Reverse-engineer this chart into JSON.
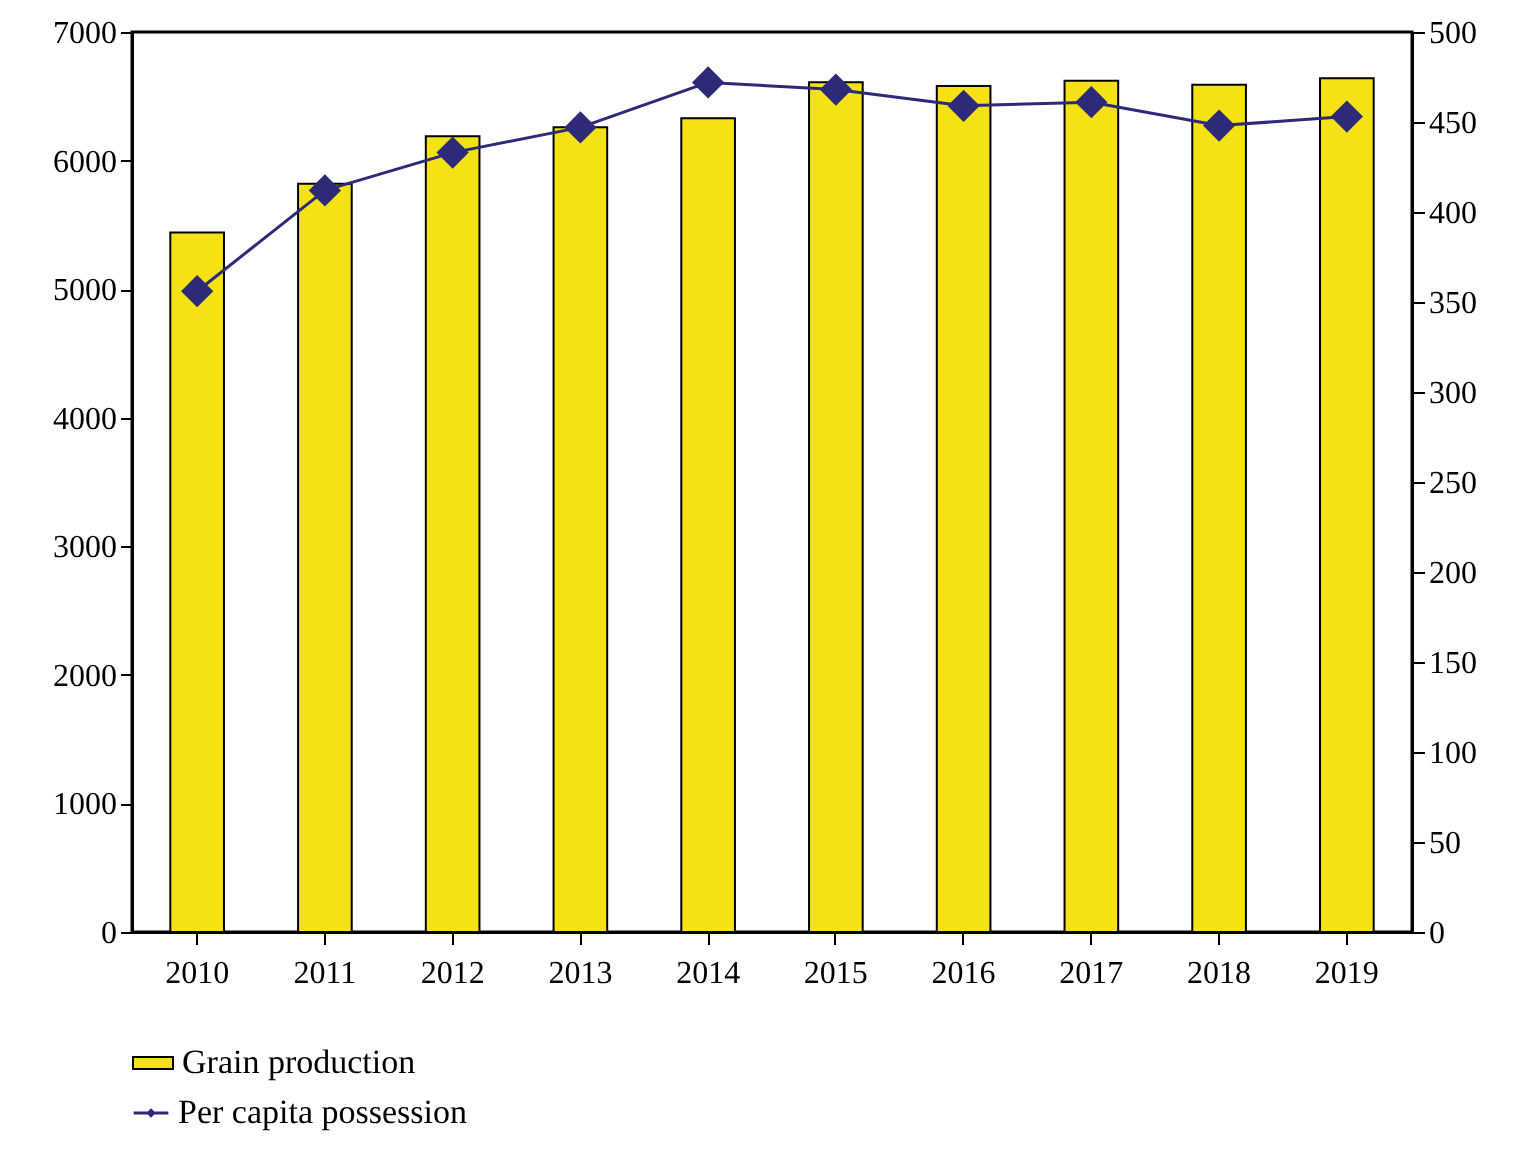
{
  "chart_data": {
    "type": "bar",
    "categories": [
      "2010",
      "2011",
      "2012",
      "2013",
      "2014",
      "2015",
      "2016",
      "2017",
      "2018",
      "2019"
    ],
    "series": [
      {
        "name": "Grain production",
        "color": "#f5e214",
        "values": [
          5440,
          5820,
          6190,
          6260,
          6330,
          6610,
          6580,
          6620,
          6590,
          6640
        ]
      },
      {
        "name": "Per capita possession",
        "type": "line",
        "axis": "y2",
        "color": "#2e2a7a",
        "marker": "diamond",
        "values": [
          356,
          412,
          433,
          447,
          472,
          468,
          459,
          461,
          448,
          453
        ]
      }
    ],
    "ylim": [
      0,
      7000
    ],
    "yticks": [
      0,
      1000,
      2000,
      3000,
      4000,
      5000,
      6000,
      7000
    ],
    "y2lim": [
      0,
      500
    ],
    "y2ticks": [
      0,
      50,
      100,
      150,
      200,
      250,
      300,
      350,
      400,
      450,
      500
    ],
    "grid": false,
    "legend": "bottom left"
  }
}
